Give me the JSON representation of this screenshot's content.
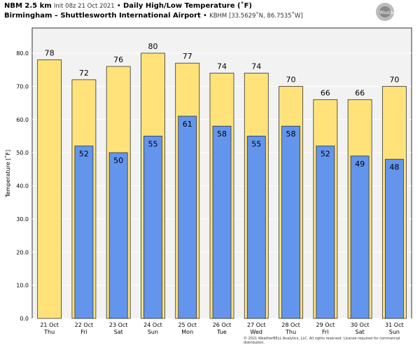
{
  "header": {
    "model": "NBM 2.5 km",
    "init": "Init 08z 21 Oct 2021",
    "bullet": "•",
    "title": "Daily High/Low Temperature (˚F)",
    "location": "Birmingham – Shuttlesworth International Airport",
    "station": "KBHM [33.5629˚N, 86.7535˚W]"
  },
  "logo_text": "WeatherBELL",
  "footer": "© 2021 WeatherBELL Analytics, LLC. All rights reserved. License required for commercial distribution.",
  "colors": {
    "high": "#ffe37a",
    "low": "#6495ed",
    "plot_bg": "#f2f2f2"
  },
  "chart_data": {
    "type": "bar",
    "title": "Daily High/Low Temperature (˚F)",
    "ylabel": "Temperature [˚F]",
    "ylim": [
      0,
      84
    ],
    "yticks": [
      "0.0",
      "10.0",
      "20.0",
      "30.0",
      "40.0",
      "50.0",
      "60.0",
      "70.0",
      "80.0"
    ],
    "categories": [
      [
        "21 Oct",
        "Thu"
      ],
      [
        "22 Oct",
        "Fri"
      ],
      [
        "23 Oct",
        "Sat"
      ],
      [
        "24 Oct",
        "Sun"
      ],
      [
        "25 Oct",
        "Mon"
      ],
      [
        "26 Oct",
        "Tue"
      ],
      [
        "27 Oct",
        "Wed"
      ],
      [
        "28 Oct",
        "Thu"
      ],
      [
        "29 Oct",
        "Fri"
      ],
      [
        "30 Oct",
        "Sat"
      ],
      [
        "31 Oct",
        "Sun"
      ]
    ],
    "series": [
      {
        "name": "High",
        "values": [
          78,
          72,
          76,
          80,
          77,
          74,
          74,
          70,
          66,
          66,
          70
        ]
      },
      {
        "name": "Low",
        "values": [
          null,
          52,
          50,
          55,
          61,
          58,
          55,
          58,
          52,
          49,
          48
        ]
      }
    ],
    "grid": true
  }
}
